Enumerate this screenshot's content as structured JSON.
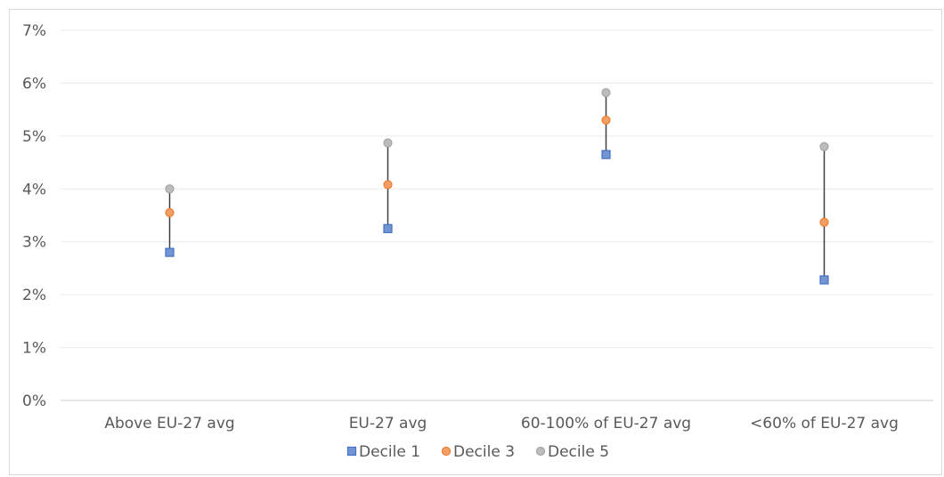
{
  "chart_data": {
    "type": "scatter",
    "title": "",
    "xlabel": "",
    "ylabel": "",
    "categories": [
      "Above EU-27 avg",
      "EU-27 avg",
      "60-100% of EU-27 avg",
      "<60% of EU-27 avg"
    ],
    "ylim": [
      0,
      0.07
    ],
    "yticks": [
      "0%",
      "1%",
      "2%",
      "3%",
      "4%",
      "5%",
      "6%",
      "7%"
    ],
    "grid": true,
    "legend_position": "bottom",
    "range_lines": true,
    "series": [
      {
        "name": "Decile 1",
        "marker": "square",
        "color": "#4472c4",
        "values": [
          0.028,
          0.0325,
          0.0465,
          0.0228
        ]
      },
      {
        "name": "Decile 3",
        "marker": "circle",
        "color": "#ed7d31",
        "values": [
          0.0355,
          0.0408,
          0.053,
          0.0337
        ]
      },
      {
        "name": "Decile 5",
        "marker": "circle",
        "color": "#a5a5a5",
        "values": [
          0.04,
          0.0487,
          0.0582,
          0.048
        ]
      }
    ]
  }
}
